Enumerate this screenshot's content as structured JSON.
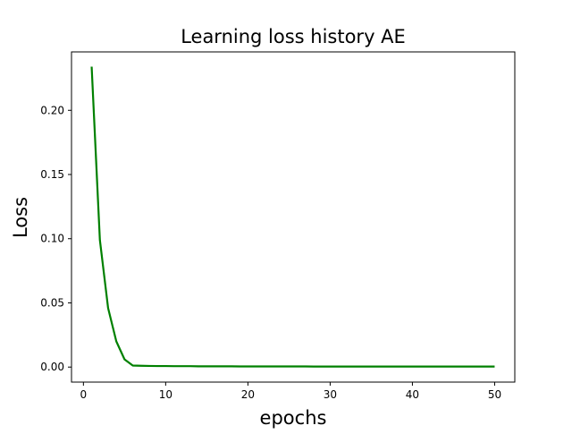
{
  "chart_data": {
    "type": "line",
    "title": "Learning loss history AE",
    "xlabel": "epochs",
    "ylabel": "Loss",
    "xlim": [
      -1.45,
      52.45
    ],
    "ylim": [
      -0.0117,
      0.2455
    ],
    "xticks": [
      0,
      10,
      20,
      30,
      40,
      50
    ],
    "xtick_labels": [
      "0",
      "10",
      "20",
      "30",
      "40",
      "50"
    ],
    "yticks": [
      0.0,
      0.05,
      0.1,
      0.15,
      0.2
    ],
    "ytick_labels": [
      "0.00",
      "0.05",
      "0.10",
      "0.15",
      "0.20"
    ],
    "grid": false,
    "legend": null,
    "series": [
      {
        "color": "#008000",
        "x": [
          1,
          2,
          3,
          4,
          5,
          6,
          7,
          8,
          9,
          10,
          11,
          12,
          13,
          14,
          15,
          16,
          17,
          18,
          19,
          20,
          21,
          22,
          23,
          24,
          25,
          26,
          27,
          28,
          29,
          30,
          31,
          32,
          33,
          34,
          35,
          36,
          37,
          38,
          39,
          40,
          41,
          42,
          43,
          44,
          45,
          46,
          47,
          48,
          49,
          50
        ],
        "values": [
          0.234,
          0.099,
          0.046,
          0.02,
          0.006,
          0.0012,
          0.001,
          0.0009,
          0.0008,
          0.0008,
          0.0007,
          0.0007,
          0.0007,
          0.0006,
          0.0006,
          0.0006,
          0.0006,
          0.0006,
          0.0005,
          0.0005,
          0.0005,
          0.0005,
          0.0005,
          0.0005,
          0.0005,
          0.0005,
          0.0005,
          0.0004,
          0.0004,
          0.0004,
          0.0004,
          0.0004,
          0.0004,
          0.0004,
          0.0004,
          0.0004,
          0.0004,
          0.0004,
          0.0004,
          0.0004,
          0.0004,
          0.0004,
          0.0004,
          0.0004,
          0.0004,
          0.0004,
          0.0004,
          0.0004,
          0.0004,
          0.0004
        ]
      }
    ]
  }
}
